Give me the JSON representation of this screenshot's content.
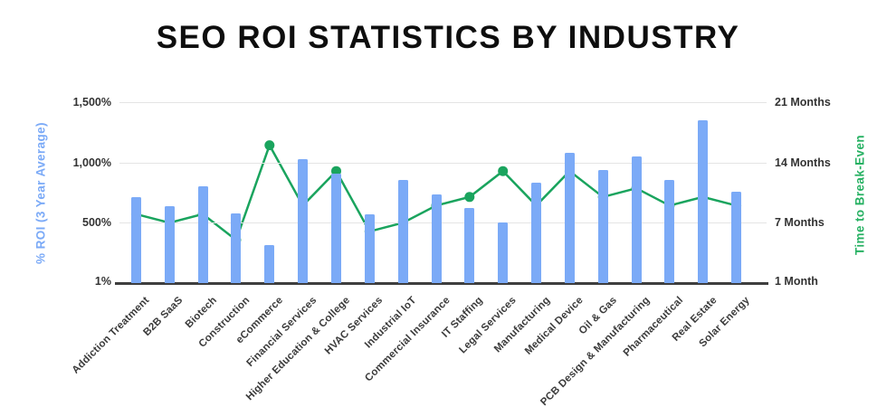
{
  "title": "SEO ROI STATISTICS BY INDUSTRY",
  "chart_data": {
    "type": "bar",
    "subtype": "combo-bar-line-dual-axis",
    "categories": [
      "Addiction Treatment",
      "B2B SaaS",
      "Biotech",
      "Construction",
      "eCommerce",
      "Financial Services",
      "Higher Education & College",
      "HVAC Services",
      "Industrial IoT",
      "Commercial Insurance",
      "IT Staffing",
      "Legal Services",
      "Manufacturing",
      "Medical Device",
      "Oil & Gas",
      "PCB Design & Manufacturing",
      "Pharmaceutical",
      "Real Estate",
      "Solar Energy"
    ],
    "series": [
      {
        "name": "% ROI (3 Year Average)",
        "type": "bar",
        "axis": "left",
        "color": "#7baaf7",
        "values": [
          710,
          640,
          800,
          580,
          315,
          1030,
          910,
          570,
          855,
          735,
          620,
          500,
          830,
          1080,
          935,
          1050,
          855,
          1350,
          755
        ]
      },
      {
        "name": "Time to Break-Even",
        "type": "line",
        "axis": "right",
        "color": "#1aa45e",
        "values_unit": "months",
        "values": [
          8,
          7,
          8,
          5,
          16,
          9,
          13,
          6,
          7,
          9,
          10,
          13,
          9,
          13,
          10,
          11,
          9,
          10,
          9
        ]
      }
    ],
    "left_axis": {
      "label": "% ROI (3 Year Average)",
      "color": "#7baaf7",
      "tick_labels": [
        "1,500%",
        "1,000%",
        "500%",
        "1%"
      ],
      "tick_values": [
        1500,
        1000,
        500,
        1
      ],
      "range": [
        0,
        1500
      ]
    },
    "right_axis": {
      "label": "Time to Break-Even",
      "color": "#27b163",
      "tick_labels": [
        "21 Months",
        "14 Months",
        "7 Months",
        "1 Month"
      ],
      "tick_values": [
        21,
        14,
        7,
        1
      ],
      "range": [
        0,
        21
      ]
    },
    "grid": true,
    "legend": "none",
    "background": "#ffffff"
  }
}
